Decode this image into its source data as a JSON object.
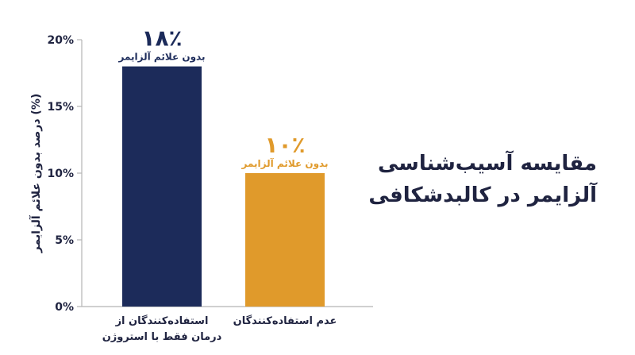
{
  "chart_data": {
    "type": "bar",
    "ylabel": "درصد بدون علائم آلزایمر (%)",
    "ylim": [
      0,
      20
    ],
    "y_ticks": [
      "0%",
      "5%",
      "10%",
      "15%",
      "20%"
    ],
    "y_tick_values": [
      0,
      5,
      10,
      15,
      20
    ],
    "categories": [
      [
        "استفاده‌کنندگان از",
        "درمان فقط با استروژن"
      ],
      [
        "عدم استفاده‌کنندگان"
      ]
    ],
    "values": [
      18,
      10
    ],
    "value_labels": [
      "۱۸٪",
      "۱۰٪"
    ],
    "bar_sublabels": [
      "بدون علائم آلزایمر",
      "بدون علائم آلزایمر"
    ],
    "colors": [
      "#1c2b5a",
      "#e09a2b"
    ],
    "label_colors": [
      "#1c2b5a",
      "#e09a2b"
    ],
    "grid": false
  },
  "title": {
    "line1": "مقایسه آسیب‌شناسی",
    "line2": "آلزایمر در کالبدشکافی"
  }
}
